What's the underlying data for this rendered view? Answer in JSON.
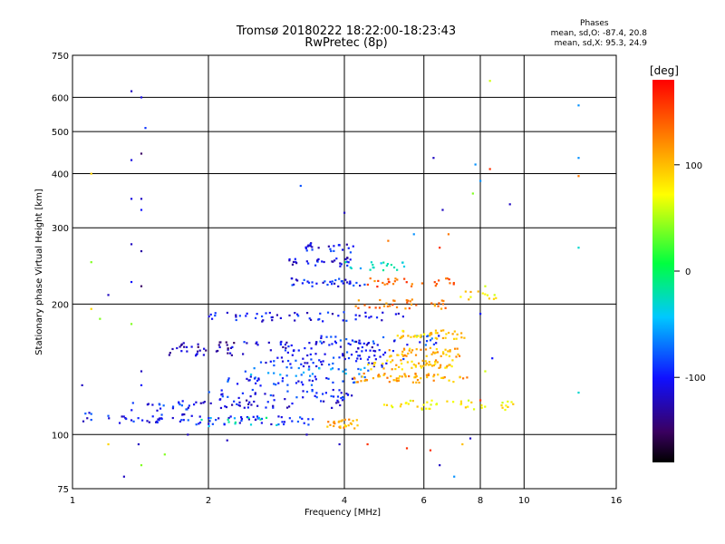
{
  "header": {
    "title": "Tromsø 20180222 18:22:00-18:23:43",
    "subtitle": "RwPretec (8p)"
  },
  "stats": {
    "heading": "Phases",
    "o_line": "mean, sd,O: -87.4, 20.8",
    "x_line": "mean, sd,X:  95.3, 24.9"
  },
  "chart_data": {
    "type": "scatter",
    "xlabel": "Frequency [MHz]",
    "ylabel": "Stationary phase Virtual Height [km]",
    "xscale": "log",
    "yscale": "log",
    "xlim": [
      1,
      16
    ],
    "ylim": [
      75,
      750
    ],
    "x_ticks": [
      1,
      2,
      4,
      6,
      8,
      10,
      16
    ],
    "y_ticks": [
      75,
      100,
      200,
      300,
      400,
      500,
      600,
      750
    ],
    "grid": true,
    "colorbar": {
      "label": "[deg]",
      "range": [
        -180,
        180
      ],
      "ticks": [
        100,
        0,
        -100
      ]
    },
    "traces": [
      {
        "x0": 1.05,
        "x1": 1.25,
        "y": 110,
        "phase": -100,
        "n": 8
      },
      {
        "x0": 1.25,
        "x1": 1.8,
        "y": 109,
        "phase": -105,
        "n": 28
      },
      {
        "x0": 1.35,
        "x1": 1.85,
        "y": 116,
        "phase": -95,
        "n": 18
      },
      {
        "x0": 1.8,
        "x1": 3.5,
        "y": 108,
        "phase": -95,
        "n": 45
      },
      {
        "x0": 1.9,
        "x1": 3.0,
        "y": 107,
        "phase": -30,
        "n": 14
      },
      {
        "x0": 1.7,
        "x1": 4.0,
        "y": 118,
        "phase": -110,
        "n": 45
      },
      {
        "x0": 2.0,
        "x1": 4.2,
        "y": 124,
        "phase": -100,
        "n": 40
      },
      {
        "x0": 2.2,
        "x1": 4.6,
        "y": 133,
        "phase": -95,
        "n": 40
      },
      {
        "x0": 2.4,
        "x1": 4.6,
        "y": 140,
        "phase": -60,
        "n": 30
      },
      {
        "x0": 2.6,
        "x1": 5.0,
        "y": 147,
        "phase": -100,
        "n": 35
      },
      {
        "x0": 3.0,
        "x1": 5.5,
        "y": 153,
        "phase": -100,
        "n": 35
      },
      {
        "x0": 3.5,
        "x1": 6.5,
        "y": 165,
        "phase": -90,
        "n": 35
      },
      {
        "x0": 2.3,
        "x1": 4.8,
        "y": 160,
        "phase": -110,
        "n": 40
      },
      {
        "x0": 1.6,
        "x1": 2.4,
        "y": 156,
        "phase": -120,
        "n": 25
      },
      {
        "x0": 1.7,
        "x1": 2.3,
        "y": 162,
        "phase": -130,
        "n": 15
      },
      {
        "x0": 2.0,
        "x1": 5.5,
        "y": 187,
        "phase": -105,
        "n": 55
      },
      {
        "x0": 3.6,
        "x1": 4.3,
        "y": 106,
        "phase": 110,
        "n": 28
      },
      {
        "x0": 4.2,
        "x1": 7.5,
        "y": 135,
        "phase": 110,
        "n": 60
      },
      {
        "x0": 4.5,
        "x1": 7.0,
        "y": 145,
        "phase": 100,
        "n": 50
      },
      {
        "x0": 5.0,
        "x1": 7.2,
        "y": 155,
        "phase": 105,
        "n": 45
      },
      {
        "x0": 5.2,
        "x1": 7.4,
        "y": 170,
        "phase": 95,
        "n": 40
      },
      {
        "x0": 4.2,
        "x1": 6.8,
        "y": 200,
        "phase": 130,
        "n": 35
      },
      {
        "x0": 4.5,
        "x1": 7.0,
        "y": 225,
        "phase": 140,
        "n": 30
      },
      {
        "x0": 4.6,
        "x1": 9.5,
        "y": 117,
        "phase": 80,
        "n": 45
      },
      {
        "x0": 3.0,
        "x1": 4.5,
        "y": 225,
        "phase": -100,
        "n": 35
      },
      {
        "x0": 3.0,
        "x1": 4.3,
        "y": 250,
        "phase": -110,
        "n": 30
      },
      {
        "x0": 3.2,
        "x1": 4.2,
        "y": 270,
        "phase": -105,
        "n": 25
      },
      {
        "x0": 4.0,
        "x1": 5.5,
        "y": 245,
        "phase": -40,
        "n": 20
      },
      {
        "x0": 7.2,
        "x1": 8.8,
        "y": 210,
        "phase": 90,
        "n": 12
      }
    ],
    "scattered_points": [
      {
        "x": 1.35,
        "y": 620,
        "phase": -120
      },
      {
        "x": 1.42,
        "y": 600,
        "phase": -110
      },
      {
        "x": 1.45,
        "y": 510,
        "phase": -90
      },
      {
        "x": 1.35,
        "y": 430,
        "phase": -110
      },
      {
        "x": 1.42,
        "y": 445,
        "phase": -150
      },
      {
        "x": 1.1,
        "y": 400,
        "phase": 90
      },
      {
        "x": 1.35,
        "y": 350,
        "phase": -110
      },
      {
        "x": 1.42,
        "y": 350,
        "phase": -120
      },
      {
        "x": 1.42,
        "y": 330,
        "phase": -100
      },
      {
        "x": 1.35,
        "y": 275,
        "phase": -120
      },
      {
        "x": 1.42,
        "y": 265,
        "phase": -130
      },
      {
        "x": 1.1,
        "y": 250,
        "phase": 40
      },
      {
        "x": 1.35,
        "y": 225,
        "phase": -100
      },
      {
        "x": 1.42,
        "y": 220,
        "phase": -150
      },
      {
        "x": 1.2,
        "y": 210,
        "phase": -120
      },
      {
        "x": 1.1,
        "y": 195,
        "phase": 90
      },
      {
        "x": 1.35,
        "y": 180,
        "phase": 40
      },
      {
        "x": 1.15,
        "y": 185,
        "phase": 40
      },
      {
        "x": 1.42,
        "y": 140,
        "phase": -120
      },
      {
        "x": 1.42,
        "y": 130,
        "phase": -100
      },
      {
        "x": 1.05,
        "y": 130,
        "phase": -120
      },
      {
        "x": 1.2,
        "y": 95,
        "phase": 90
      },
      {
        "x": 1.4,
        "y": 95,
        "phase": -120
      },
      {
        "x": 1.3,
        "y": 80,
        "phase": -120
      },
      {
        "x": 1.42,
        "y": 85,
        "phase": 40
      },
      {
        "x": 1.6,
        "y": 90,
        "phase": 40
      },
      {
        "x": 2.2,
        "y": 97,
        "phase": -120
      },
      {
        "x": 3.2,
        "y": 375,
        "phase": -80
      },
      {
        "x": 4.0,
        "y": 325,
        "phase": -120
      },
      {
        "x": 6.3,
        "y": 435,
        "phase": -120
      },
      {
        "x": 6.6,
        "y": 330,
        "phase": -120
      },
      {
        "x": 7.8,
        "y": 420,
        "phase": -60
      },
      {
        "x": 8.4,
        "y": 410,
        "phase": 160
      },
      {
        "x": 8.4,
        "y": 655,
        "phase": 60
      },
      {
        "x": 8.0,
        "y": 385,
        "phase": -60
      },
      {
        "x": 7.7,
        "y": 360,
        "phase": 40
      },
      {
        "x": 9.3,
        "y": 340,
        "phase": -120
      },
      {
        "x": 13.2,
        "y": 575,
        "phase": -60
      },
      {
        "x": 13.2,
        "y": 435,
        "phase": -60
      },
      {
        "x": 13.2,
        "y": 395,
        "phase": 130
      },
      {
        "x": 13.2,
        "y": 270,
        "phase": -30
      },
      {
        "x": 13.2,
        "y": 125,
        "phase": -30
      },
      {
        "x": 4.5,
        "y": 95,
        "phase": 160
      },
      {
        "x": 5.5,
        "y": 93,
        "phase": 160
      },
      {
        "x": 6.2,
        "y": 92,
        "phase": 160
      },
      {
        "x": 6.5,
        "y": 85,
        "phase": -120
      },
      {
        "x": 7.0,
        "y": 80,
        "phase": -60
      },
      {
        "x": 7.3,
        "y": 95,
        "phase": 100
      },
      {
        "x": 7.6,
        "y": 98,
        "phase": -120
      },
      {
        "x": 8.2,
        "y": 140,
        "phase": 60
      },
      {
        "x": 8.0,
        "y": 120,
        "phase": 160
      },
      {
        "x": 8.5,
        "y": 150,
        "phase": -100
      },
      {
        "x": 8.2,
        "y": 220,
        "phase": 60
      },
      {
        "x": 8.6,
        "y": 210,
        "phase": 60
      },
      {
        "x": 8.0,
        "y": 190,
        "phase": -100
      },
      {
        "x": 3.3,
        "y": 100,
        "phase": -120
      },
      {
        "x": 3.9,
        "y": 95,
        "phase": -120
      },
      {
        "x": 1.8,
        "y": 100,
        "phase": -120
      },
      {
        "x": 5.0,
        "y": 280,
        "phase": 130
      },
      {
        "x": 5.7,
        "y": 290,
        "phase": -60
      },
      {
        "x": 6.8,
        "y": 290,
        "phase": 130
      },
      {
        "x": 6.5,
        "y": 270,
        "phase": 160
      }
    ]
  }
}
